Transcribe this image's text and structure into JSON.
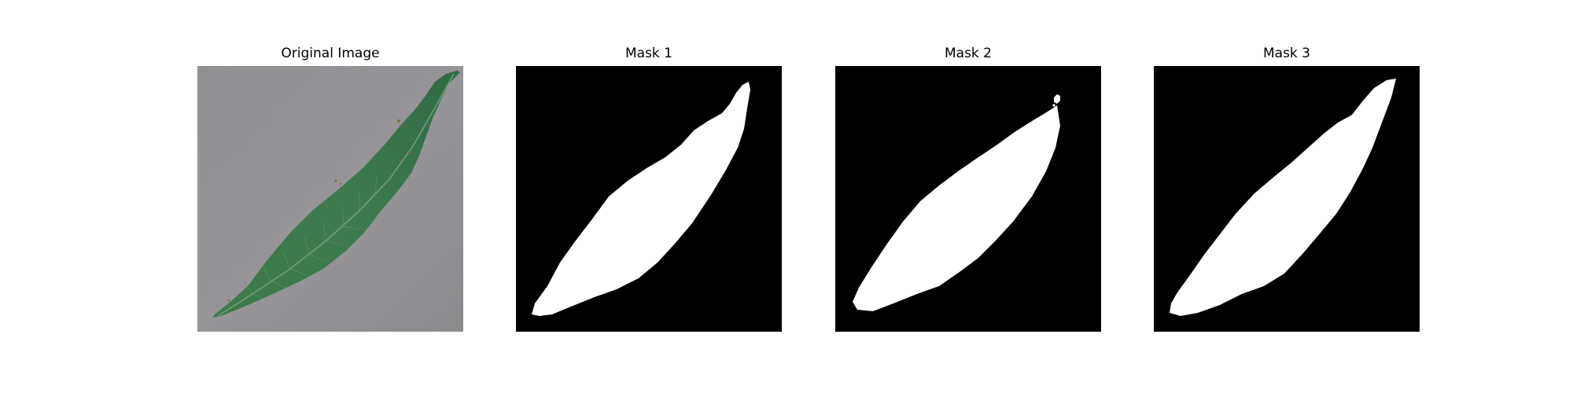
{
  "figure": {
    "panels": [
      {
        "title": "Original Image",
        "kind": "photo"
      },
      {
        "title": "Mask 1",
        "kind": "mask"
      },
      {
        "title": "Mask 2",
        "kind": "mask"
      },
      {
        "title": "Mask 3",
        "kind": "mask"
      }
    ]
  },
  "colors": {
    "figure_background": "#ffffff",
    "photo_background": "#8c8a8d",
    "leaf_green": "#3f7a4f",
    "leaf_vein": "#76a07e",
    "mask_background": "#000000",
    "mask_foreground": "#ffffff"
  }
}
